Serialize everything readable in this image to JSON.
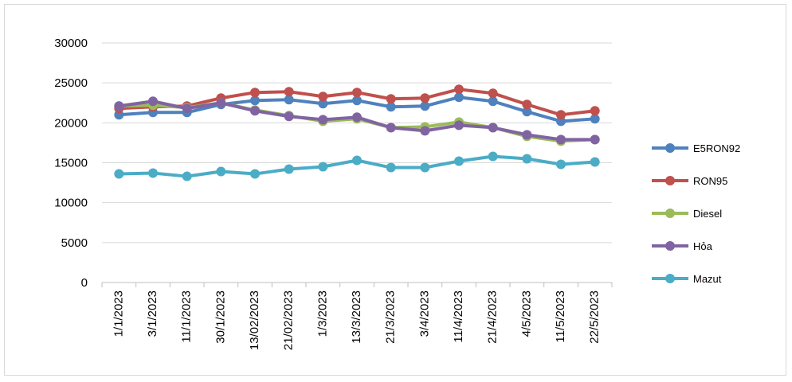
{
  "chart_data": {
    "type": "line",
    "title": "",
    "xlabel": "",
    "ylabel": "",
    "ylim": [
      0,
      30000
    ],
    "yticks": [
      0,
      5000,
      10000,
      15000,
      20000,
      25000,
      30000
    ],
    "grid": "horizontal",
    "legend_position": "right",
    "categories": [
      "1/1/2023",
      "3/1/2023",
      "11/1/2023",
      "30/1/2023",
      "13/02/2023",
      "21/02/2023",
      "1/3/2023",
      "13/3/2023",
      "21/3/2023",
      "3/4/2023",
      "11/4/2023",
      "21/4/2023",
      "4/5/2023",
      "11/5/2023",
      "22/5/2023"
    ],
    "series": [
      {
        "name": "E5RON92",
        "color": "#4f81bd",
        "values": [
          21000,
          21300,
          21300,
          22300,
          22800,
          22900,
          22400,
          22800,
          22000,
          22100,
          23200,
          22700,
          21400,
          20200,
          20500
        ]
      },
      {
        "name": "RON95",
        "color": "#c0504d",
        "values": [
          21800,
          22000,
          22100,
          23100,
          23800,
          23900,
          23300,
          23800,
          23000,
          23100,
          24200,
          23700,
          22300,
          21000,
          21500
        ]
      },
      {
        "name": "Diesel",
        "color": "#9bbb59",
        "values": [
          22100,
          22200,
          21900,
          22500,
          21600,
          20900,
          20200,
          20500,
          19400,
          19500,
          20100,
          19400,
          18300,
          17700,
          17900
        ]
      },
      {
        "name": "Hỏa",
        "color": "#8064a2",
        "values": [
          22100,
          22700,
          21800,
          22500,
          21500,
          20800,
          20400,
          20700,
          19400,
          19000,
          19700,
          19400,
          18500,
          17900,
          17900
        ]
      },
      {
        "name": "Mazut",
        "color": "#4bacc6",
        "values": [
          13600,
          13700,
          13300,
          13900,
          13600,
          14200,
          14500,
          15300,
          14400,
          14400,
          15200,
          15800,
          15500,
          14800,
          15100
        ]
      }
    ]
  }
}
